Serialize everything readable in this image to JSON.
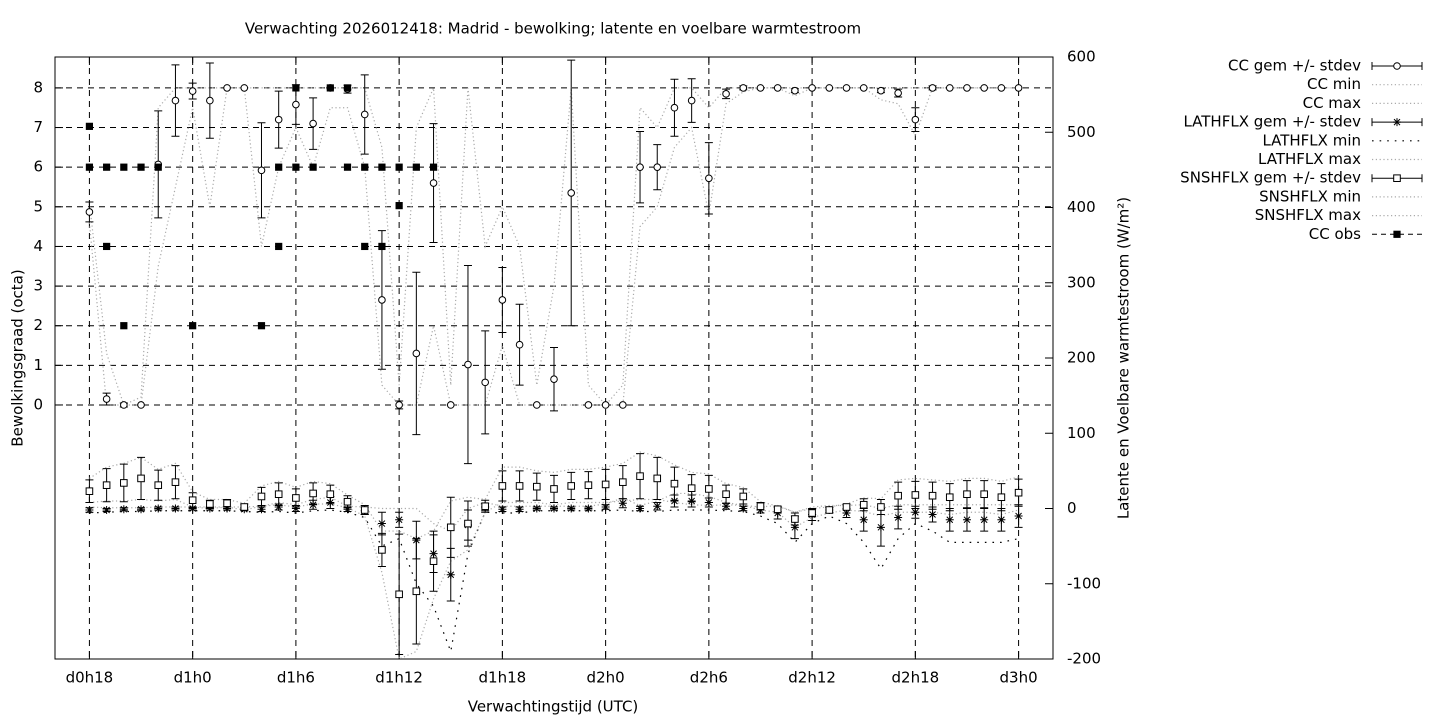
{
  "chart_data": {
    "type": "errorbar",
    "title": "Verwachting 2026012418: Madrid - bewolking; latente en voelbare warmtestroom",
    "xlabel": "Verwachtingstijd (UTC)",
    "ylabel": "Bewolkingsgraad (octa)",
    "y2label": "Latente en Voelbare warmtestroom (W/m²)",
    "grid": true,
    "legend": "outside-right-top",
    "xlim": [
      -2,
      56
    ],
    "xticks": [
      {
        "value": 0,
        "label": "d0h18"
      },
      {
        "value": 6,
        "label": "d1h0"
      },
      {
        "value": 12,
        "label": "d1h6"
      },
      {
        "value": 18,
        "label": "d1h12"
      },
      {
        "value": 24,
        "label": "d1h18"
      },
      {
        "value": 30,
        "label": "d2h0"
      },
      {
        "value": 36,
        "label": "d2h6"
      },
      {
        "value": 42,
        "label": "d2h12"
      },
      {
        "value": 48,
        "label": "d2h18"
      },
      {
        "value": 54,
        "label": "d3h0"
      }
    ],
    "ylim": [
      -6.41,
      8.78
    ],
    "yticks": [
      0,
      1,
      2,
      3,
      4,
      5,
      6,
      7,
      8
    ],
    "y2lim": [
      -200,
      600
    ],
    "y2ticks": [
      -200,
      -100,
      0,
      100,
      200,
      300,
      400,
      500,
      600
    ],
    "x": [
      0,
      1,
      2,
      3,
      4,
      5,
      6,
      7,
      8,
      9,
      10,
      11,
      12,
      13,
      14,
      15,
      16,
      17,
      18,
      19,
      20,
      21,
      22,
      23,
      24,
      25,
      26,
      27,
      28,
      29,
      30,
      31,
      32,
      33,
      34,
      35,
      36,
      37,
      38,
      39,
      40,
      41,
      42,
      43,
      44,
      45,
      46,
      47,
      48,
      49,
      50,
      51,
      52,
      53,
      54
    ],
    "series": [
      {
        "name": "CC gem +/- stdev",
        "color": "#000000",
        "style": "errorbar",
        "marker": "circle",
        "values": [
          4.87,
          0.15,
          0,
          0,
          6.07,
          7.68,
          7.92,
          7.68,
          8,
          8,
          5.92,
          7.2,
          7.58,
          7.1,
          8,
          7.97,
          7.33,
          2.65,
          0,
          1.3,
          5.6,
          0,
          1.02,
          0.57,
          2.65,
          1.52,
          0,
          0.65,
          5.35,
          0,
          0,
          0,
          6,
          6,
          7.5,
          7.68,
          5.72,
          7.85,
          8,
          8,
          8,
          7.93,
          8,
          8,
          8,
          8,
          7.93,
          7.87,
          7.2,
          8,
          8,
          8,
          8,
          8,
          8
        ],
        "errors": [
          0.25,
          0.15,
          0.05,
          0,
          1.35,
          0.9,
          0.2,
          0.95,
          0,
          0,
          1.2,
          0.72,
          0.5,
          0.65,
          0,
          0.1,
          1.0,
          1.75,
          0.1,
          2.05,
          1.5,
          0,
          2.5,
          1.3,
          0.82,
          1.02,
          0,
          0.8,
          3.35,
          0,
          0,
          0,
          0.9,
          0.57,
          0.72,
          0.55,
          0.9,
          0.12,
          0.05,
          0,
          0,
          0.05,
          0,
          0,
          0,
          0,
          0.05,
          0.1,
          0.3,
          0.05,
          0,
          0,
          0,
          0,
          0
        ]
      },
      {
        "name": "CC min",
        "color": "#aaaaaa",
        "style": "line",
        "line_style": "dotted",
        "values": [
          4.6,
          0,
          0,
          0,
          3.5,
          5.5,
          7.5,
          5,
          8,
          8,
          4,
          6,
          7,
          6,
          7.5,
          7.5,
          6,
          0.5,
          0,
          0,
          2,
          0,
          0,
          0,
          1.5,
          0,
          0,
          0,
          0,
          0,
          0,
          0,
          4.5,
          5,
          6.5,
          7,
          4.8,
          7.6,
          7.9,
          8,
          8,
          7.8,
          8,
          8,
          8,
          8,
          7.7,
          7.6,
          6.8,
          8,
          8,
          8,
          8,
          8,
          8
        ]
      },
      {
        "name": "CC max",
        "color": "#aaaaaa",
        "style": "line",
        "line_style": "dotted",
        "values": [
          5.1,
          1.3,
          0,
          0.2,
          7.5,
          8,
          8,
          8,
          8,
          8,
          8,
          8,
          8,
          8,
          8,
          8,
          8,
          6.5,
          0.5,
          7,
          8,
          0.5,
          8,
          4,
          5,
          4,
          0.5,
          3,
          8,
          0.5,
          0,
          0.5,
          7.5,
          7,
          8,
          8,
          7.5,
          8,
          8,
          8,
          8,
          8,
          8,
          8,
          8,
          8,
          8,
          8,
          8,
          8,
          8,
          8,
          8,
          8,
          8
        ]
      },
      {
        "name": "LATHFLX gem +/- stdev",
        "color": "#000000",
        "style": "errorbar",
        "marker": "asterisk",
        "axis": "y2",
        "values": [
          -2,
          -2,
          -1,
          -1,
          0,
          0,
          0,
          0,
          0,
          -1,
          -1,
          2,
          0,
          5,
          8,
          -1,
          -3,
          -20,
          -15,
          -42,
          -60,
          -88,
          -22,
          2,
          -1,
          -1,
          0,
          0,
          0,
          0,
          2,
          7,
          0,
          3,
          10,
          10,
          8,
          3,
          0,
          -2,
          -6,
          -25,
          -8,
          -2,
          -6,
          -15,
          -25,
          -12,
          -5,
          -8,
          -15,
          -15,
          -15,
          -15,
          -10
        ],
        "errors": [
          3,
          2,
          2,
          2,
          2,
          2,
          2,
          2,
          2,
          2,
          3,
          4,
          4,
          6,
          8,
          3,
          5,
          15,
          10,
          25,
          25,
          35,
          20,
          5,
          3,
          3,
          2,
          2,
          2,
          2,
          3,
          6,
          3,
          5,
          8,
          8,
          6,
          4,
          3,
          4,
          8,
          15,
          8,
          4,
          6,
          15,
          25,
          15,
          8,
          10,
          15,
          15,
          15,
          15,
          15
        ]
      },
      {
        "name": "LATHFLX min",
        "color": "#000000",
        "style": "line",
        "line_style": "sparse-dotted",
        "axis": "y2",
        "values": [
          -6,
          -5,
          -4,
          -4,
          -3,
          -3,
          -3,
          -3,
          -3,
          -4,
          -5,
          -4,
          -6,
          -3,
          -2,
          -5,
          -12,
          -50,
          -40,
          -100,
          -130,
          -190,
          -60,
          -5,
          -6,
          -6,
          -3,
          -3,
          -3,
          -3,
          -3,
          -2,
          -4,
          -4,
          -2,
          -2,
          -2,
          -3,
          -4,
          -10,
          -20,
          -45,
          -20,
          -10,
          -20,
          -45,
          -80,
          -40,
          -20,
          -30,
          -45,
          -45,
          -45,
          -45,
          -40
        ]
      },
      {
        "name": "LATHFLX max",
        "color": "#aaaaaa",
        "style": "line",
        "line_style": "dotted",
        "axis": "y2",
        "values": [
          2,
          1,
          1,
          1,
          2,
          2,
          2,
          2,
          2,
          2,
          3,
          8,
          5,
          12,
          15,
          3,
          2,
          0,
          0,
          0,
          -20,
          -30,
          0,
          8,
          3,
          3,
          3,
          3,
          3,
          3,
          6,
          14,
          4,
          10,
          20,
          20,
          16,
          8,
          4,
          2,
          4,
          -5,
          2,
          4,
          4,
          5,
          0,
          5,
          5,
          5,
          5,
          5,
          5,
          5,
          5
        ]
      },
      {
        "name": "SNSHFLX gem +/- stdev",
        "color": "#000000",
        "style": "errorbar",
        "marker": "square",
        "axis": "y2",
        "values": [
          23,
          31,
          34,
          40,
          31,
          35,
          11,
          6,
          7,
          2,
          16,
          19,
          14,
          20,
          19,
          9,
          -2,
          -55,
          -114,
          -110,
          -70,
          -25,
          -20,
          3,
          30,
          30,
          29,
          26,
          30,
          31,
          32,
          35,
          43,
          40,
          33,
          27,
          26,
          19,
          16,
          3,
          -1,
          -14,
          -6,
          -2,
          2,
          5,
          2,
          17,
          18,
          17,
          15,
          19,
          19,
          15,
          21
        ],
        "errors": [
          15,
          22,
          25,
          28,
          20,
          22,
          10,
          5,
          5,
          4,
          12,
          15,
          12,
          14,
          12,
          8,
          6,
          22,
          80,
          70,
          40,
          40,
          30,
          8,
          20,
          20,
          18,
          18,
          18,
          18,
          20,
          22,
          30,
          28,
          22,
          18,
          18,
          12,
          10,
          5,
          3,
          8,
          5,
          3,
          3,
          8,
          10,
          18,
          18,
          18,
          18,
          18,
          18,
          18,
          18
        ]
      },
      {
        "name": "SNSHFLX min",
        "color": "#aaaaaa",
        "style": "line",
        "line_style": "dotted",
        "axis": "y2",
        "values": [
          8,
          10,
          10,
          12,
          10,
          12,
          2,
          0,
          2,
          -2,
          3,
          5,
          2,
          6,
          6,
          1,
          -10,
          -85,
          -200,
          -190,
          -120,
          -70,
          -55,
          -5,
          8,
          8,
          8,
          5,
          8,
          8,
          8,
          10,
          12,
          12,
          8,
          5,
          4,
          5,
          4,
          -2,
          -5,
          -25,
          -12,
          -6,
          -2,
          -4,
          -10,
          -5,
          -5,
          -5,
          -8,
          -5,
          -5,
          -8,
          -2
        ]
      },
      {
        "name": "SNSHFLX max",
        "color": "#aaaaaa",
        "style": "line",
        "line_style": "dotted",
        "axis": "y2",
        "values": [
          40,
          55,
          60,
          68,
          52,
          60,
          22,
          12,
          12,
          7,
          30,
          36,
          28,
          36,
          33,
          18,
          5,
          -30,
          -30,
          -40,
          -30,
          10,
          15,
          12,
          55,
          55,
          50,
          48,
          52,
          52,
          55,
          60,
          75,
          70,
          58,
          48,
          46,
          33,
          28,
          9,
          3,
          -5,
          0,
          2,
          6,
          14,
          13,
          38,
          40,
          38,
          36,
          40,
          40,
          36,
          42
        ]
      },
      {
        "name": "CC obs",
        "color": "#000000",
        "style": "points",
        "marker": "filled-square",
        "line_style": "dashed",
        "x": [
          0,
          0,
          1,
          1,
          2,
          2,
          3,
          4,
          6,
          10,
          11,
          11,
          12,
          12,
          13,
          14,
          15,
          15,
          16,
          16,
          17,
          17,
          18,
          18,
          19,
          20
        ],
        "values": [
          7.03,
          6,
          6,
          4,
          6,
          2,
          6,
          6,
          2,
          2,
          6,
          4,
          8,
          6,
          6,
          8,
          8,
          6,
          6,
          4,
          6,
          4,
          6,
          5.03,
          6,
          6
        ]
      }
    ]
  }
}
